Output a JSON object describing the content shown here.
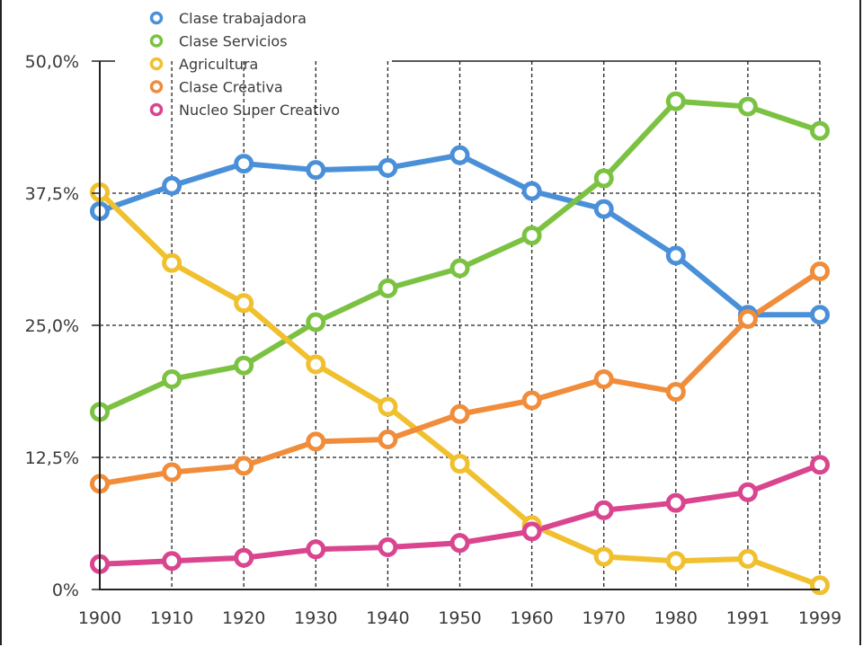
{
  "chart_data": {
    "type": "line",
    "title": "",
    "xlabel": "",
    "ylabel": "",
    "categories": [
      "1900",
      "1910",
      "1920",
      "1930",
      "1940",
      "1950",
      "1960",
      "1970",
      "1980",
      "1991",
      "1999"
    ],
    "y_ticks": [
      "0%",
      "12,5%",
      "25,0%",
      "37,5%",
      "50,0%"
    ],
    "ylim": [
      0,
      50
    ],
    "grid": true,
    "legend_position": "top-left",
    "series": [
      {
        "name": "Clase trabajadora",
        "color": "#4a90d9",
        "values": [
          35.8,
          38.2,
          40.3,
          39.7,
          39.9,
          41.1,
          37.7,
          36.0,
          31.6,
          26.0,
          26.0
        ]
      },
      {
        "name": "Clase Servicios",
        "color": "#7cc242",
        "values": [
          16.8,
          19.9,
          21.2,
          25.3,
          28.5,
          30.4,
          33.5,
          38.9,
          46.2,
          45.7,
          43.4
        ]
      },
      {
        "name": "Agricultura",
        "color": "#f0c02e",
        "values": [
          37.6,
          30.9,
          27.1,
          21.3,
          17.3,
          11.9,
          6.1,
          3.1,
          2.7,
          2.9,
          0.4
        ]
      },
      {
        "name": "Clase Creativa",
        "color": "#f08c3a",
        "values": [
          10.0,
          11.1,
          11.7,
          14.0,
          14.2,
          16.6,
          17.9,
          19.9,
          18.7,
          25.6,
          30.1
        ]
      },
      {
        "name": "Nucleo Super Creativo",
        "color": "#d9458e",
        "values": [
          2.4,
          2.7,
          3.0,
          3.8,
          4.0,
          4.4,
          5.5,
          7.5,
          8.2,
          9.2,
          11.8
        ]
      }
    ]
  }
}
